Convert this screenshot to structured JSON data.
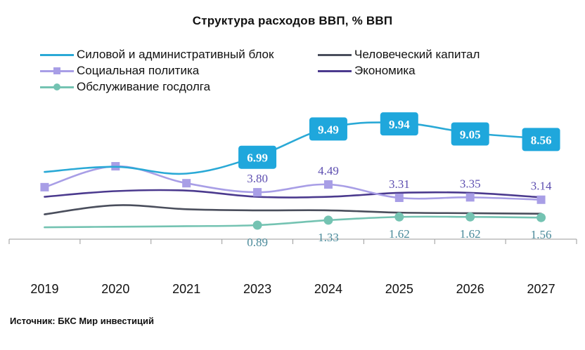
{
  "chart_data": {
    "type": "line",
    "title": "Структура расходов ВВП, % ВВП",
    "categories": [
      "2019",
      "2020",
      "2021",
      "2023",
      "2024",
      "2025",
      "2026",
      "2027"
    ],
    "series": [
      {
        "name": "Силовой и административный блок",
        "color": "#2aa9d6",
        "marker": "none",
        "values": [
          5.6,
          6.05,
          5.45,
          6.99,
          9.49,
          9.94,
          9.05,
          8.56
        ],
        "labels": [
          "",
          "",
          "",
          "6.99",
          "9.49",
          "9.94",
          "9.05",
          "8.56"
        ]
      },
      {
        "name": "Социальная политика",
        "color": "#a89ee6",
        "marker": "square",
        "values": [
          4.25,
          6.1,
          4.6,
          3.8,
          4.49,
          3.31,
          3.35,
          3.14
        ],
        "labels": [
          "",
          "",
          "",
          "3.80",
          "4.49",
          "3.31",
          "3.35",
          "3.14"
        ]
      },
      {
        "name": "Обслуживание госдолга",
        "color": "#74c3b2",
        "marker": "circle",
        "values": [
          0.7,
          0.75,
          0.8,
          0.89,
          1.33,
          1.62,
          1.62,
          1.56
        ],
        "labels": [
          "",
          "",
          "",
          "0.89",
          "1.33",
          "1.62",
          "1.62",
          "1.56"
        ]
      },
      {
        "name": "Человеческий капитал",
        "color": "#4a4e5c",
        "marker": "none",
        "values": [
          1.85,
          2.65,
          2.3,
          2.2,
          2.2,
          2.0,
          1.95,
          1.9
        ],
        "labels": []
      },
      {
        "name": "Экономика",
        "color": "#4b3a8e",
        "marker": "none",
        "values": [
          3.4,
          3.9,
          3.95,
          3.4,
          3.4,
          3.75,
          3.75,
          3.35
        ],
        "labels": []
      }
    ],
    "label_colors": {
      "boxed": "#1fa7dc",
      "social": "#5d4eb0",
      "debt": "#4a8a9a"
    },
    "ylim": [
      -0.35,
      11.5
    ],
    "grid": false,
    "legend_position": "top"
  },
  "legend": [
    {
      "label": "Силовой и административный блок",
      "color": "#2aa9d6",
      "marker": "none"
    },
    {
      "label": "Человеческий капитал",
      "color": "#4a4e5c",
      "marker": "none"
    },
    {
      "label": "Социальная политика",
      "color": "#a89ee6",
      "marker": "square"
    },
    {
      "label": "Экономика",
      "color": "#4b3a8e",
      "marker": "none"
    },
    {
      "label": "Обслуживание госдолга",
      "color": "#74c3b2",
      "marker": "circle"
    }
  ],
  "source": "Источник: БКС Мир инвестиций"
}
